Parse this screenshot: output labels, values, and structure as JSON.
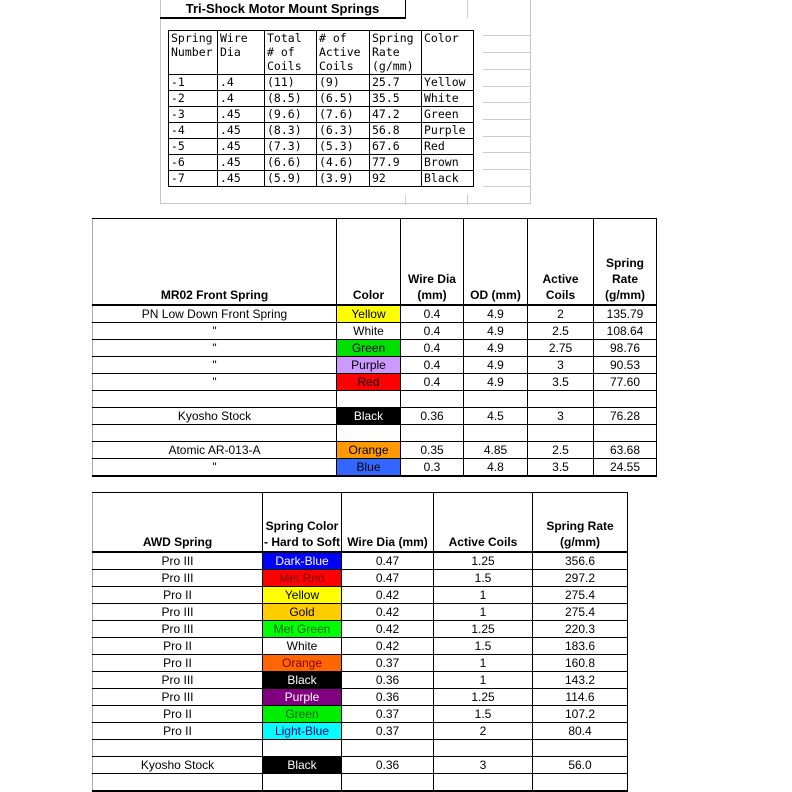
{
  "tri_shock": {
    "title": "Tri-Shock Motor Mount Springs",
    "headers": [
      "Spring Number",
      "Wire Dia",
      "Total # of Coils",
      "# of Active Coils",
      "Spring Rate (g/mm)",
      "Color"
    ],
    "rows": [
      [
        "-1",
        ".4",
        "(11)",
        "(9)",
        "25.7",
        "Yellow"
      ],
      [
        "-2",
        ".4",
        "(8.5)",
        "(6.5)",
        "35.5",
        "White"
      ],
      [
        "-3",
        ".45",
        "(9.6)",
        "(7.6)",
        "47.2",
        "Green"
      ],
      [
        "-4",
        ".45",
        "(8.3)",
        "(6.3)",
        "56.8",
        "Purple"
      ],
      [
        "-5",
        ".45",
        "(7.3)",
        "(5.3)",
        "67.6",
        "Red"
      ],
      [
        "-6",
        ".45",
        "(6.6)",
        "(4.6)",
        "77.9",
        "Brown"
      ],
      [
        "-7",
        ".45",
        "(5.9)",
        "(3.9)",
        "92",
        "Black"
      ]
    ]
  },
  "mr02": {
    "headers": [
      "MR02 Front Spring",
      "Color",
      "Wire Dia (mm)",
      "OD (mm)",
      "Active Coils",
      "Spring Rate (g/mm)"
    ],
    "rows": [
      {
        "cells": [
          "PN Low Down Front Spring",
          "Yellow",
          "0.4",
          "4.9",
          "2",
          "135.79"
        ],
        "bg": "#ffff00",
        "fg": "#000000"
      },
      {
        "cells": [
          "\"",
          "White",
          "0.4",
          "4.9",
          "2.5",
          "108.64"
        ],
        "bg": "#ffffff",
        "fg": "#000000"
      },
      {
        "cells": [
          "\"",
          "Green",
          "0.4",
          "4.9",
          "2.75",
          "98.76"
        ],
        "bg": "#00e000",
        "fg": "#000000"
      },
      {
        "cells": [
          "\"",
          "Purple",
          "0.4",
          "4.9",
          "3",
          "90.53"
        ],
        "bg": "#cc99ff",
        "fg": "#000000"
      },
      {
        "cells": [
          "\"",
          "Red",
          "0.4",
          "4.9",
          "3.5",
          "77.60"
        ],
        "bg": "#ff0000",
        "fg": "#000000"
      },
      {
        "cells": [
          "",
          "",
          "",
          "",
          "",
          ""
        ],
        "bg": "#ffffff",
        "fg": "#000000"
      },
      {
        "cells": [
          "Kyosho Stock",
          "Black",
          "0.36",
          "4.5",
          "3",
          "76.28"
        ],
        "bg": "#000000",
        "fg": "#ffffff"
      },
      {
        "cells": [
          "",
          "",
          "",
          "",
          "",
          ""
        ],
        "bg": "#ffffff",
        "fg": "#000000"
      },
      {
        "cells": [
          "Atomic AR-013-A",
          "Orange",
          "0.35",
          "4.85",
          "2.5",
          "63.68"
        ],
        "bg": "#ff9900",
        "fg": "#000000"
      },
      {
        "cells": [
          "\"",
          "Blue",
          "0.3",
          "4.8",
          "3.5",
          "24.55"
        ],
        "bg": "#3366ff",
        "fg": "#000000"
      }
    ]
  },
  "awd": {
    "headers": [
      "AWD Spring",
      "Spring Color - Hard to Soft",
      "Wire Dia (mm)",
      "Active Coils",
      "Spring Rate (g/mm)"
    ],
    "rows": [
      {
        "cells": [
          "Pro III",
          "Dark-Blue",
          "0.47",
          "1.25",
          "356.6"
        ],
        "bg": "#0000ff",
        "fg": "#ffffff"
      },
      {
        "cells": [
          "Pro III",
          "Met Red",
          "0.47",
          "1.5",
          "297.2"
        ],
        "bg": "#ff0000",
        "fg": "#800000"
      },
      {
        "cells": [
          "Pro II",
          "Yellow",
          "0.42",
          "1",
          "275.4"
        ],
        "bg": "#ffff00",
        "fg": "#000000"
      },
      {
        "cells": [
          "Pro III",
          "Gold",
          "0.42",
          "1",
          "275.4"
        ],
        "bg": "#ffcc00",
        "fg": "#000000"
      },
      {
        "cells": [
          "Pro III",
          "Met Green",
          "0.42",
          "1.25",
          "220.3"
        ],
        "bg": "#00ff00",
        "fg": "#006600"
      },
      {
        "cells": [
          "Pro II",
          "White",
          "0.42",
          "1.5",
          "183.6"
        ],
        "bg": "#ffffff",
        "fg": "#000000"
      },
      {
        "cells": [
          "Pro II",
          "Orange",
          "0.37",
          "1",
          "160.8"
        ],
        "bg": "#ff6600",
        "fg": "#800000"
      },
      {
        "cells": [
          "Pro III",
          "Black",
          "0.36",
          "1",
          "143.2"
        ],
        "bg": "#000000",
        "fg": "#ffffff"
      },
      {
        "cells": [
          "Pro III",
          "Purple",
          "0.36",
          "1.25",
          "114.6"
        ],
        "bg": "#800080",
        "fg": "#ffffff"
      },
      {
        "cells": [
          "Pro II",
          "Green",
          "0.37",
          "1.5",
          "107.2"
        ],
        "bg": "#00ee00",
        "fg": "#006600"
      },
      {
        "cells": [
          "Pro II",
          "Light-Blue",
          "0.37",
          "2",
          "80.4"
        ],
        "bg": "#00ffff",
        "fg": "#000080"
      },
      {
        "cells": [
          "",
          "",
          "",
          "",
          ""
        ],
        "bg": "#ffffff",
        "fg": "#000000"
      },
      {
        "cells": [
          "Kyosho Stock",
          "Black",
          "0.36",
          "3",
          "56.0"
        ],
        "bg": "#000000",
        "fg": "#ffffff"
      },
      {
        "cells": [
          "",
          "",
          "",
          "",
          ""
        ],
        "bg": "#ffffff",
        "fg": "#000000"
      }
    ]
  }
}
